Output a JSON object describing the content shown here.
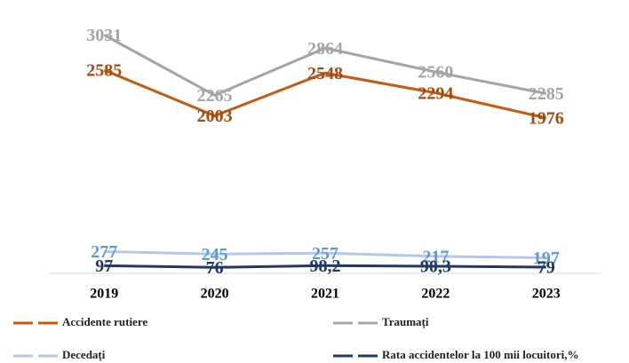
{
  "chart_data": {
    "type": "line",
    "categories": [
      "2019",
      "2020",
      "2021",
      "2022",
      "2023"
    ],
    "ylim": [
      0,
      3250
    ],
    "legend": "bottom",
    "series": [
      {
        "name": "Accidente rutiere",
        "color": "#c55a11",
        "label_color": "#a64a0c",
        "values": [
          2585,
          2003,
          2548,
          2294,
          1976
        ]
      },
      {
        "name": "Traumați",
        "color": "#a5a5a5",
        "label_color": "#a5a5a5",
        "values": [
          3031,
          2265,
          2864,
          2560,
          2285
        ]
      },
      {
        "name": "Decedați",
        "color": "#b4c7e7",
        "label_color": "#5b9bd5",
        "values": [
          277,
          245,
          257,
          217,
          197
        ]
      },
      {
        "name": "Rata accidentelor la 100 mii locuitori,%",
        "color": "#203864",
        "label_color": "#203864",
        "values": [
          97,
          76,
          98.2,
          90.3,
          79
        ],
        "value_labels": [
          "97",
          "76",
          "98,2",
          "90,3",
          "79"
        ]
      }
    ]
  }
}
